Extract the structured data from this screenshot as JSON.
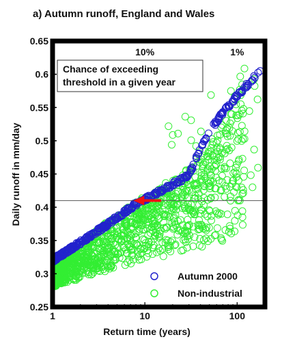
{
  "chart_data": {
    "type": "scatter",
    "title": "a) Autumn runoff, England and Wales",
    "xlabel": "Return time (years)",
    "ylabel": "Daily runoff in mm/day",
    "x_scale": "log",
    "xlim": [
      1,
      200
    ],
    "ylim": [
      0.25,
      0.65
    ],
    "x_ticks": [
      1,
      10,
      100
    ],
    "x_tick_labels": [
      "1",
      "10",
      "100"
    ],
    "y_ticks": [
      0.25,
      0.3,
      0.35,
      0.4,
      0.45,
      0.5,
      0.55,
      0.6,
      0.65
    ],
    "y_tick_labels": [
      "0.25",
      "0.3",
      "0.35",
      "0.4",
      "0.45",
      "0.5",
      "0.55",
      "0.6",
      "0.65"
    ],
    "top_axis_labels": [
      {
        "x": 10,
        "label": "10%"
      },
      {
        "x": 100,
        "label": "1%"
      }
    ],
    "annotation": {
      "lines": [
        "Chance of exceeding",
        "threshold in a given year"
      ]
    },
    "threshold": {
      "y": 0.41,
      "color": "#555555"
    },
    "arrow": {
      "from_x": 15,
      "to_x": 7.5,
      "y": 0.41,
      "color": "#ee1111"
    },
    "series": [
      {
        "name": "Autumn 2000",
        "color": "#2222cc",
        "x": [
          1.0,
          2.0,
          4.0,
          8.0,
          15.0,
          30.0,
          40.0,
          60.0,
          90.0,
          130.0,
          180.0
        ],
        "y": [
          0.32,
          0.347,
          0.375,
          0.405,
          0.425,
          0.448,
          0.49,
          0.53,
          0.56,
          0.585,
          0.605
        ]
      },
      {
        "name": "Non-industrial",
        "color": "#33ee33",
        "x": [
          1.0,
          2.0,
          4.0,
          8.0,
          15.0,
          30.0,
          60.0,
          100.0,
          120.0
        ],
        "y_low": [
          0.28,
          0.292,
          0.305,
          0.317,
          0.325,
          0.335,
          0.345,
          0.355,
          0.36
        ],
        "y_high": [
          0.31,
          0.345,
          0.38,
          0.41,
          0.43,
          0.46,
          0.51,
          0.56,
          0.61
        ]
      }
    ],
    "legend": {
      "position": "bottom-right"
    }
  }
}
